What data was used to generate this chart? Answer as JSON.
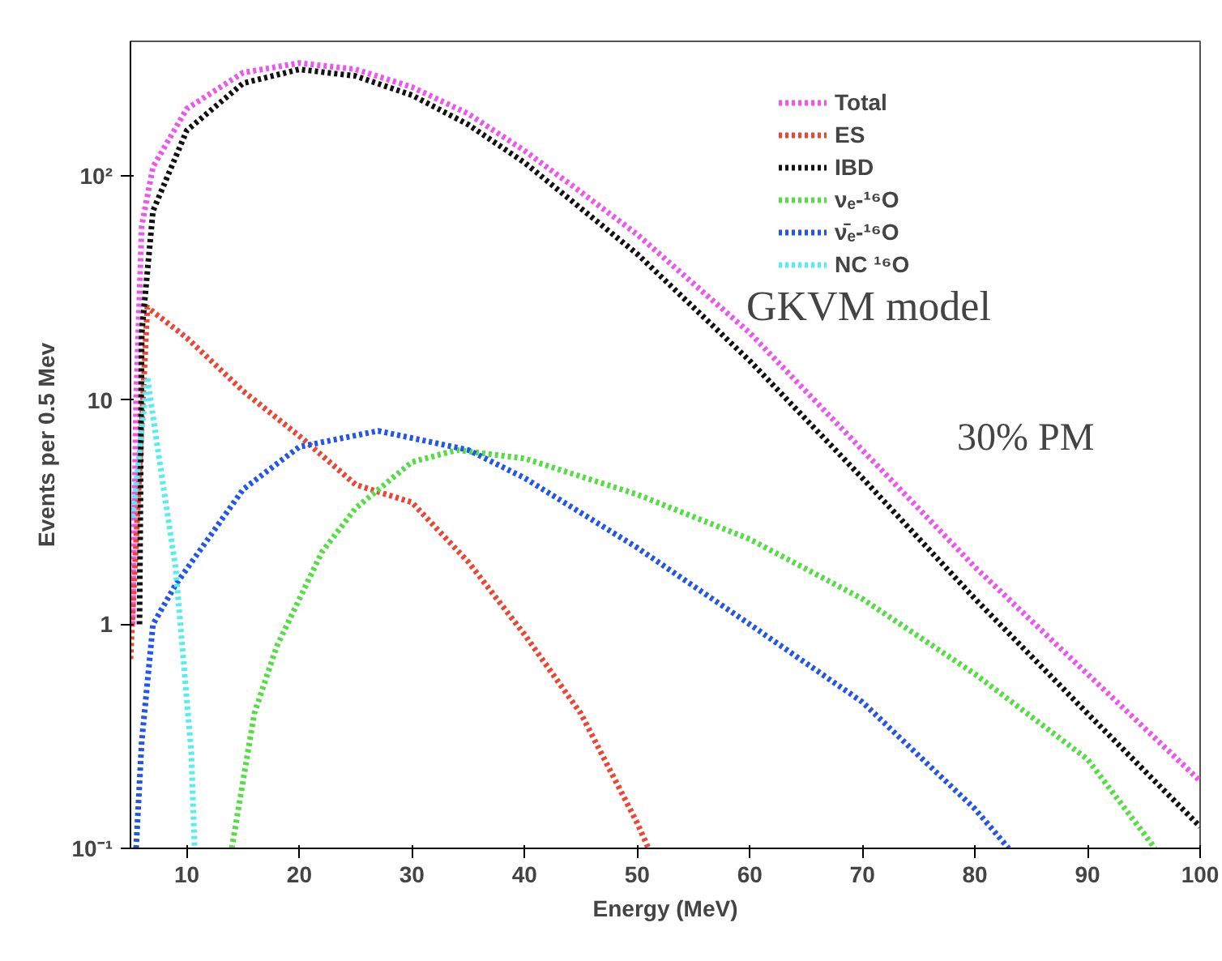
{
  "chart_data": {
    "type": "line",
    "xlabel": "Energy (MeV)",
    "ylabel": "Events per 0.5 Mev",
    "log": "y",
    "xlim": [
      5,
      100
    ],
    "ylim": [
      0.1,
      400
    ],
    "xticks": [
      10,
      20,
      30,
      40,
      50,
      60,
      70,
      80,
      90,
      100
    ],
    "yticks": [
      {
        "value": 0.1,
        "label": "10⁻¹"
      },
      1,
      10,
      {
        "value": 100,
        "label": "10²"
      }
    ],
    "grid": false,
    "legend": "top right",
    "line_style": "dotted",
    "marker": "none",
    "annotations": [
      "GKVM model",
      "30% PM"
    ],
    "series": [
      {
        "name": "Total",
        "color": "#ee55ee",
        "x": [
          5.2,
          5.5,
          6,
          7,
          10,
          15,
          20,
          25,
          30,
          35,
          40,
          45,
          50,
          60,
          70,
          80,
          90,
          100
        ],
        "values": [
          1,
          10,
          60,
          110,
          200,
          290,
          320,
          300,
          250,
          190,
          130,
          85,
          55,
          20,
          6,
          1.8,
          0.6,
          0.2
        ]
      },
      {
        "name": "ES",
        "color": "#ee4433",
        "x": [
          5,
          6.5,
          10,
          15,
          20.5,
          25,
          30,
          35,
          40,
          45,
          50,
          51
        ],
        "values": [
          0.7,
          26,
          19,
          11,
          6.6,
          4.2,
          3.5,
          1.9,
          0.9,
          0.4,
          0.13,
          0.1
        ]
      },
      {
        "name": "IBD",
        "color": "#111111",
        "x": [
          5.8,
          6,
          7,
          10,
          15,
          20,
          25,
          30,
          35,
          40,
          50,
          60,
          70,
          80,
          90,
          100
        ],
        "values": [
          1,
          20,
          70,
          160,
          260,
          300,
          280,
          230,
          170,
          115,
          45,
          15,
          4.5,
          1.3,
          0.4,
          0.125
        ]
      },
      {
        "name": "νₑ-¹⁶O",
        "color": "#55dd44",
        "x": [
          14,
          16,
          18,
          22,
          25,
          30,
          34,
          40,
          50,
          60,
          70,
          80,
          90,
          96
        ],
        "values": [
          0.1,
          0.4,
          0.8,
          2.1,
          3.3,
          5.3,
          6,
          5.5,
          3.8,
          2.4,
          1.3,
          0.6,
          0.25,
          0.1
        ]
      },
      {
        "name": "ν̄ₑ-¹⁶O",
        "color": "#2255ee",
        "x": [
          5.5,
          6,
          7,
          9,
          15,
          20,
          27,
          35,
          40,
          50,
          60,
          70,
          80,
          83
        ],
        "values": [
          0.1,
          0.3,
          1,
          1.5,
          4,
          6.2,
          7.3,
          6,
          4.5,
          2.2,
          1,
          0.45,
          0.15,
          0.1
        ]
      },
      {
        "name": "NC ¹⁶O",
        "color": "#55eeee",
        "x": [
          5.2,
          6.5,
          7.5,
          9,
          10.4,
          10.7
        ],
        "values": [
          3,
          12.7,
          5.7,
          1.8,
          0.27,
          0.1
        ]
      }
    ]
  }
}
